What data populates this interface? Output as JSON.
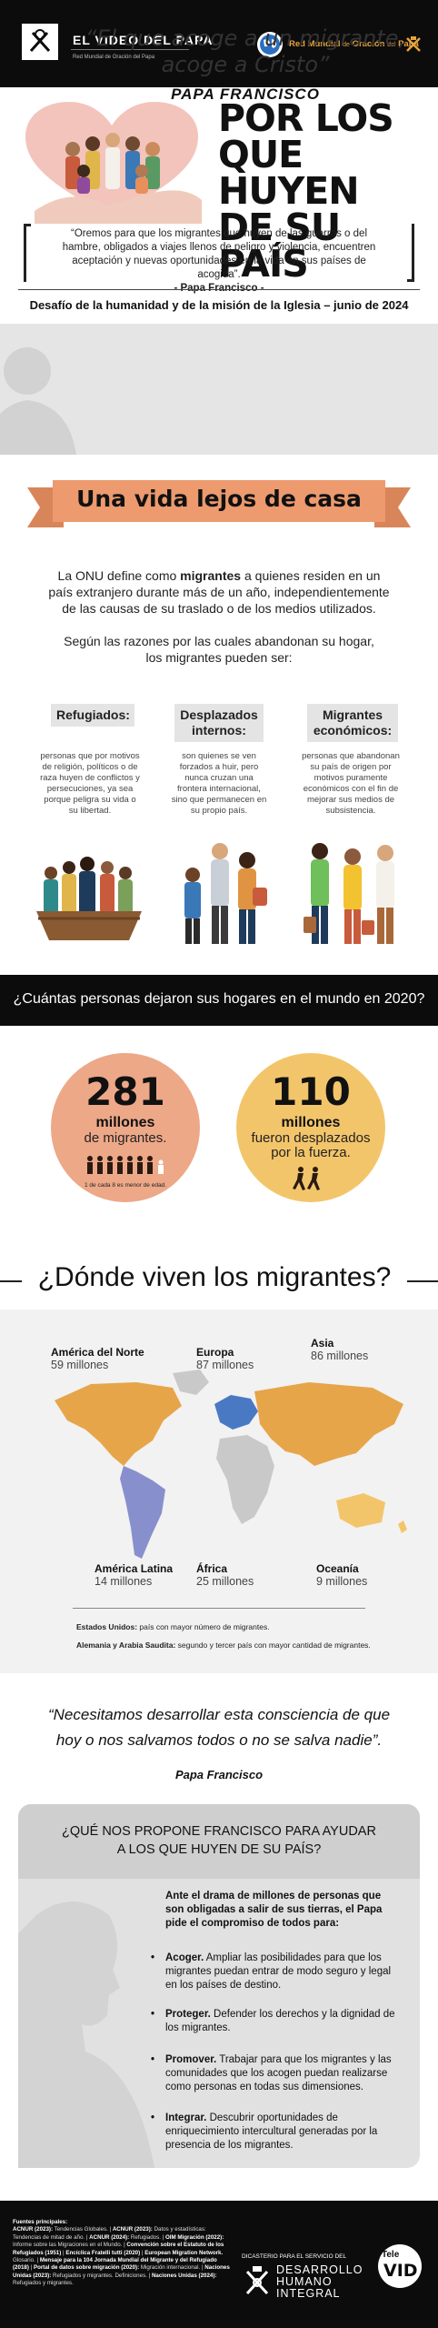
{
  "header": {
    "title": "EL VIDEO DEL PAPA",
    "subtitle": "Red Mundial de Oración del Papa",
    "network_a": "Red Mundial",
    "network_b": "de",
    "network_c": "Oración",
    "network_d": "del",
    "network_e": "Papa"
  },
  "hero": {
    "title_line1": "POR LOS",
    "title_line2": "QUE HUYEN",
    "title_line3": "DE SU PAÍS",
    "quote": "“Oremos para que los migrantes que huyen de las guerras o del hambre, obligados a viajes llenos de peligro y violencia, encuentren aceptación y nuevas oportunidades en la vida en sus países de acogida”.",
    "quote_author": "- Papa Francisco -",
    "challenge": "Desafío de la humanidad y de la misión de la Iglesia – junio de 2024"
  },
  "band1": {
    "quote_line1": "“El que acoge a un migrante,",
    "quote_line2": "acoge a Cristo”",
    "author": "PAPA FRANCISCO"
  },
  "section1": {
    "ribbon": "Una vida lejos de casa",
    "onu_pre": "La ONU define como ",
    "onu_bold": "migrantes",
    "onu_post": " a quienes residen en un país extranjero durante más de un año, independientemente de las causas de su traslado o de los medios utilizados.",
    "reasons": "Según las razones por las cuales abandonan su hogar, los migrantes pueden ser:",
    "categories": [
      {
        "title": "Refugiados:",
        "desc": "personas que por motivos de religión, políticos o de raza huyen de conflictos y persecuciones, ya sea porque peligra su vida o su libertad."
      },
      {
        "title": "Desplazados internos:",
        "desc": "son quienes se ven forzados a huir, pero nunca cruzan una frontera internacional, sino que permanecen en su propio país."
      },
      {
        "title": "Migrantes económicos:",
        "desc": "personas que abandonan su país de origen por motivos puramente económicos con el fin de mejorar sus medios de subsistencia."
      }
    ]
  },
  "band2": {
    "text": "¿Cuántas personas dejaron sus hogares en el mundo en 2020?"
  },
  "stats": [
    {
      "number": "281",
      "label": "millones",
      "sub": "de migrantes.",
      "note": "1 de cada 8 es menor de edad."
    },
    {
      "number": "110",
      "label": "millones",
      "sub": "fueron desplazados por la fuerza."
    }
  ],
  "where": {
    "title": "¿Dónde viven los migrantes?",
    "regions": [
      {
        "name": "América del Norte",
        "value": "59 millones"
      },
      {
        "name": "Europa",
        "value": "87 millones"
      },
      {
        "name": "Asia",
        "value": "86 millones"
      },
      {
        "name": "América Latina",
        "value": "14 millones"
      },
      {
        "name": "África",
        "value": "25 millones"
      },
      {
        "name": "Oceanía",
        "value": "9 millones"
      }
    ],
    "note1_bold": "Estados Unidos:",
    "note1": " país con mayor número de migrantes.",
    "note2_bold": "Alemania y Arabia Saudita:",
    "note2": " segundo y tercer país con mayor cantidad de migrantes."
  },
  "quote2": {
    "text": "“Necesitamos desarrollar esta consciencia de que hoy o nos salvamos todos o no se salva nadie”.",
    "author": "Papa Francisco"
  },
  "proposal": {
    "title_line1": "¿QUÉ NOS PROPONE FRANCISCO PARA AYUDAR",
    "title_line2": "A LOS QUE HUYEN DE SU PAÍS?",
    "intro": "Ante el drama de millones de personas que son obligadas a salir de sus tierras, el Papa pide el compromiso de todos para:",
    "items": [
      {
        "bold": "Acoger.",
        "text": " Ampliar las posibilidades para que los migrantes puedan entrar de modo seguro y legal en los países de destino."
      },
      {
        "bold": "Proteger.",
        "text": " Defender los derechos y la dignidad de los migrantes."
      },
      {
        "bold": "Promover.",
        "text": " Trabajar para que los migrantes y las comunidades que los acogen puedan realizarse como personas en todas sus dimensiones."
      },
      {
        "bold": "Integrar.",
        "text": " Descubrir oportunidades de enriquecimiento intercultural generadas por la presencia de los migrantes."
      }
    ]
  },
  "footer": {
    "sources_title": "Fuentes principales:",
    "sources": [
      {
        "b": "ACNUR (2023):",
        "t": " Tendencias Globales. | "
      },
      {
        "b": "ACNUR (2023):",
        "t": " Datos y estadísticas: Tendencias de mitad de año. | "
      },
      {
        "b": "ACNUR (2024):",
        "t": " Refugiados. | "
      },
      {
        "b": "OIM Migración (2022):",
        "t": " Informe sobre las Migraciones en el Mundo. | "
      },
      {
        "b": "Convención sobre el Estatuto de los Refugiados (1951)",
        "t": " | "
      },
      {
        "b": "Encíclica Fratelli tutti (2020)",
        "t": " | "
      },
      {
        "b": "European Migration Network.",
        "t": " Glosario. | "
      },
      {
        "b": "Mensaje para la 104 Jornada Mundial del Migrante y del Refugiado (2018)",
        "t": " | "
      },
      {
        "b": "Portal de datos sobre migración (2020):",
        "t": " Migración internacional. | "
      },
      {
        "b": "Naciones Unidas (2023):",
        "t": " Refugiados y migrantes. Definiciones. | "
      },
      {
        "b": "Naciones Unidas (2024):",
        "t": " Refugiados y migrantes."
      }
    ],
    "dicast_pre": "DICASTERIO PARA EL SERVICIO DEL",
    "dicast_1": "DESARROLLO",
    "dicast_2": "HUMANO",
    "dicast_3": "INTEGRAL",
    "tele": "Tele",
    "vid": "VID"
  },
  "colors": {
    "black": "#0c0c0c",
    "salmon": "#eda888",
    "ribbon": "#ec9a6e",
    "gold": "#f3c56b",
    "map_orange": "#e7a54a",
    "map_blue": "#4a79c4",
    "map_purple": "#8790cc",
    "map_gray": "#c9c9c9",
    "network_gold": "#e8a33d"
  }
}
